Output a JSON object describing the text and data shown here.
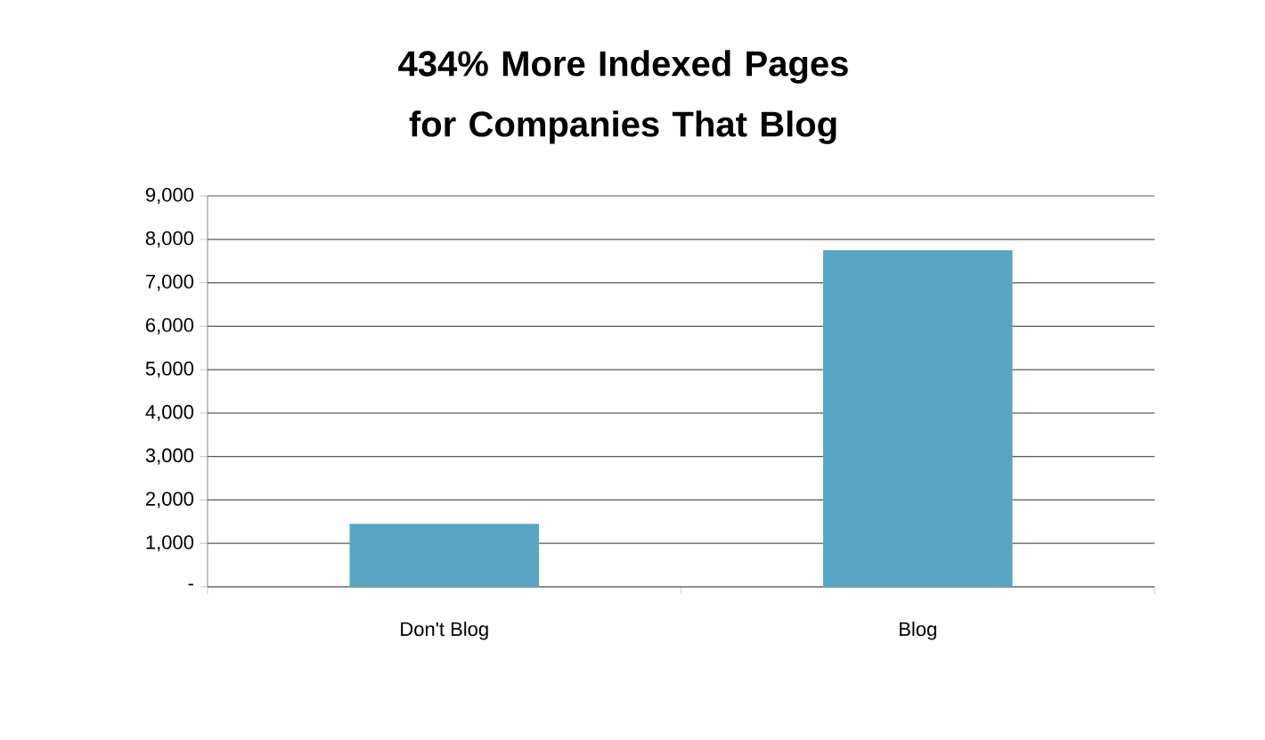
{
  "chart_data": {
    "type": "bar",
    "title": "434% More Indexed Pages for Companies That Blog",
    "categories": [
      "Don't Blog",
      "Blog"
    ],
    "values": [
      1450,
      7750
    ],
    "color": "#57a7c4",
    "ylim": [
      0,
      9000
    ],
    "yticks": [
      {
        "value": 0,
        "label": "-"
      },
      {
        "value": 1000,
        "label": "1,000"
      },
      {
        "value": 2000,
        "label": "2,000"
      },
      {
        "value": 3000,
        "label": "3,000"
      },
      {
        "value": 4000,
        "label": "4,000"
      },
      {
        "value": 5000,
        "label": "5,000"
      },
      {
        "value": 6000,
        "label": "6,000"
      },
      {
        "value": 7000,
        "label": "7,000"
      },
      {
        "value": 8000,
        "label": "8,000"
      },
      {
        "value": 9000,
        "label": "9,000"
      }
    ],
    "grid": "y"
  }
}
